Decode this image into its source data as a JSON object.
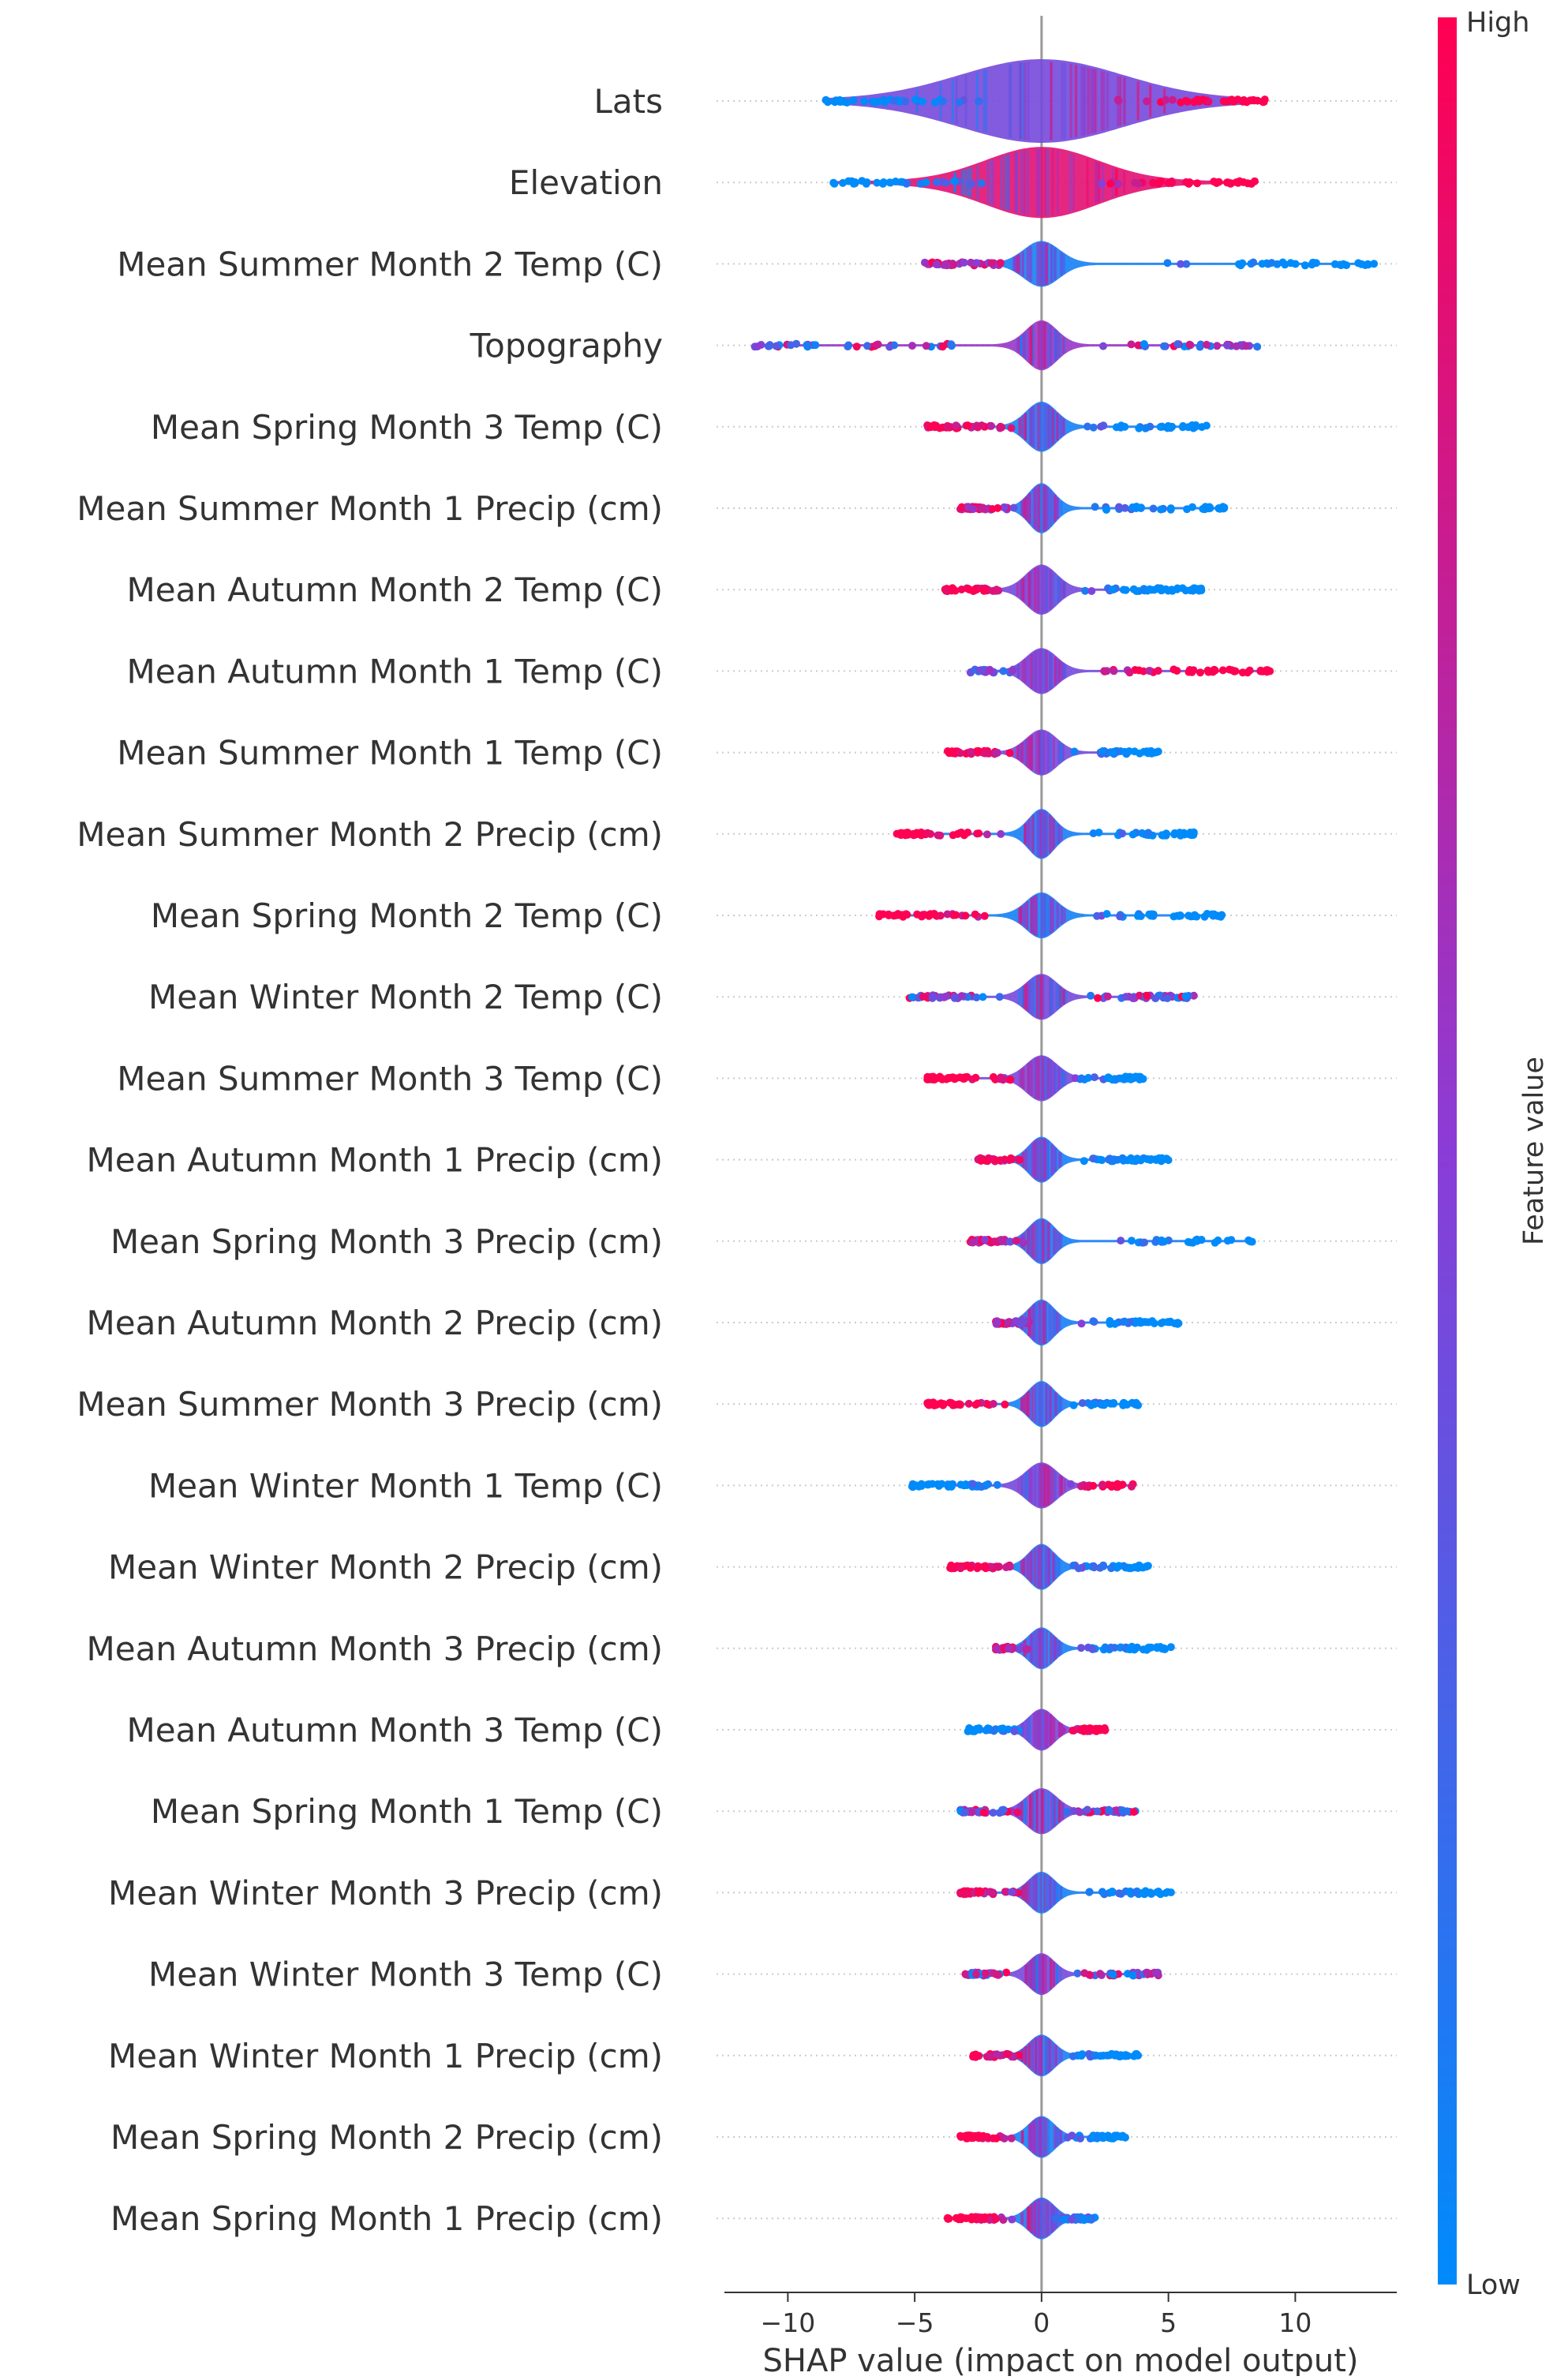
{
  "chart_data": {
    "type": "scatter",
    "subtype": "shap-beeswarm-violin",
    "title": "",
    "xlabel": "SHAP value (impact on model output)",
    "ylabel": "",
    "xlim": [
      -12.5,
      14
    ],
    "xticks": [
      -10,
      -5,
      0,
      5,
      10
    ],
    "xtick_labels": [
      "−10",
      "−5",
      "0",
      "5",
      "10"
    ],
    "zero_line": 0,
    "colorbar": {
      "label": "Feature value",
      "high_label": "High",
      "low_label": "Low",
      "low_color": "#008bfb",
      "high_color": "#ff0052"
    },
    "colors": {
      "low": "#008bfb",
      "mid": "#8a3dd6",
      "high": "#ff0052",
      "zero_line": "#999999",
      "row_line": "#cccccc",
      "axis": "#333333"
    },
    "features": [
      {
        "name": "Lats",
        "min": -8.5,
        "max": 8.8,
        "spread": 3.2,
        "peak": 1.0,
        "low_side": "neg",
        "dominant": "mid"
      },
      {
        "name": "Elevation",
        "min": -8.2,
        "max": 8.4,
        "spread": 2.2,
        "peak": 0.85,
        "low_side": "neg",
        "dominant": "high"
      },
      {
        "name": "Mean Summer Month 2 Temp (C)",
        "min": -4.6,
        "max": 13.1,
        "spread": 0.7,
        "peak": 0.55,
        "low_side": "pos",
        "dominant": "low"
      },
      {
        "name": "Topography",
        "min": -11.3,
        "max": 8.5,
        "spread": 0.6,
        "peak": 0.6,
        "low_side": "mixed",
        "dominant": "mixed"
      },
      {
        "name": "Mean Spring Month 3 Temp (C)",
        "min": -4.5,
        "max": 6.5,
        "spread": 0.6,
        "peak": 0.6,
        "low_side": "pos",
        "dominant": "low"
      },
      {
        "name": "Mean Summer Month 1 Precip (cm)",
        "min": -3.2,
        "max": 7.2,
        "spread": 0.5,
        "peak": 0.6,
        "low_side": "pos",
        "dominant": "low"
      },
      {
        "name": "Mean Autumn Month 2 Temp (C)",
        "min": -3.8,
        "max": 6.3,
        "spread": 0.6,
        "peak": 0.6,
        "low_side": "pos",
        "dominant": "mid"
      },
      {
        "name": "Mean Autumn Month 1 Temp (C)",
        "min": -2.8,
        "max": 9.0,
        "spread": 0.6,
        "peak": 0.55,
        "low_side": "neg",
        "dominant": "mid"
      },
      {
        "name": "Mean Summer Month 1 Temp (C)",
        "min": -3.7,
        "max": 4.6,
        "spread": 0.6,
        "peak": 0.55,
        "low_side": "pos",
        "dominant": "mid"
      },
      {
        "name": "Mean Summer Month 2 Precip (cm)",
        "min": -5.7,
        "max": 6.0,
        "spread": 0.5,
        "peak": 0.6,
        "low_side": "pos",
        "dominant": "low"
      },
      {
        "name": "Mean Spring Month 2 Temp (C)",
        "min": -6.4,
        "max": 7.1,
        "spread": 0.6,
        "peak": 0.55,
        "low_side": "pos",
        "dominant": "low"
      },
      {
        "name": "Mean Winter Month 2 Temp (C)",
        "min": -5.2,
        "max": 6.0,
        "spread": 0.6,
        "peak": 0.55,
        "low_side": "mixed",
        "dominant": "mid"
      },
      {
        "name": "Mean Summer Month 3 Temp (C)",
        "min": -4.5,
        "max": 4.0,
        "spread": 0.6,
        "peak": 0.55,
        "low_side": "pos",
        "dominant": "mid"
      },
      {
        "name": "Mean Autumn Month 1 Precip (cm)",
        "min": -2.5,
        "max": 5.0,
        "spread": 0.5,
        "peak": 0.55,
        "low_side": "pos",
        "dominant": "low"
      },
      {
        "name": "Mean Spring Month 3 Precip (cm)",
        "min": -2.8,
        "max": 8.3,
        "spread": 0.5,
        "peak": 0.55,
        "low_side": "pos",
        "dominant": "low"
      },
      {
        "name": "Mean Autumn Month 2 Precip (cm)",
        "min": -1.8,
        "max": 5.4,
        "spread": 0.5,
        "peak": 0.55,
        "low_side": "pos",
        "dominant": "low"
      },
      {
        "name": "Mean Summer Month 3 Precip (cm)",
        "min": -4.5,
        "max": 3.8,
        "spread": 0.5,
        "peak": 0.55,
        "low_side": "pos",
        "dominant": "low"
      },
      {
        "name": "Mean Winter Month 1 Temp (C)",
        "min": -5.1,
        "max": 3.6,
        "spread": 0.6,
        "peak": 0.55,
        "low_side": "neg",
        "dominant": "mid"
      },
      {
        "name": "Mean Winter Month 2 Precip (cm)",
        "min": -3.6,
        "max": 4.2,
        "spread": 0.5,
        "peak": 0.55,
        "low_side": "pos",
        "dominant": "low"
      },
      {
        "name": "Mean Autumn Month 3 Precip (cm)",
        "min": -1.8,
        "max": 5.1,
        "spread": 0.5,
        "peak": 0.5,
        "low_side": "pos",
        "dominant": "low"
      },
      {
        "name": "Mean Autumn Month 3 Temp (C)",
        "min": -2.9,
        "max": 2.5,
        "spread": 0.5,
        "peak": 0.5,
        "low_side": "neg",
        "dominant": "mid"
      },
      {
        "name": "Mean Spring Month 1 Temp (C)",
        "min": -3.2,
        "max": 3.7,
        "spread": 0.6,
        "peak": 0.55,
        "low_side": "mixed",
        "dominant": "mid"
      },
      {
        "name": "Mean Winter Month 3 Precip (cm)",
        "min": -3.2,
        "max": 5.1,
        "spread": 0.5,
        "peak": 0.5,
        "low_side": "pos",
        "dominant": "low"
      },
      {
        "name": "Mean Winter Month 3 Temp (C)",
        "min": -3.0,
        "max": 4.6,
        "spread": 0.5,
        "peak": 0.5,
        "low_side": "mixed",
        "dominant": "mid"
      },
      {
        "name": "Mean Winter Month 1 Precip (cm)",
        "min": -2.7,
        "max": 3.8,
        "spread": 0.5,
        "peak": 0.5,
        "low_side": "pos",
        "dominant": "low"
      },
      {
        "name": "Mean Spring Month 2 Precip (cm)",
        "min": -3.2,
        "max": 3.3,
        "spread": 0.5,
        "peak": 0.5,
        "low_side": "pos",
        "dominant": "low"
      },
      {
        "name": "Mean Spring Month 1 Precip (cm)",
        "min": -3.7,
        "max": 2.1,
        "spread": 0.5,
        "peak": 0.5,
        "low_side": "pos",
        "dominant": "low"
      }
    ]
  }
}
